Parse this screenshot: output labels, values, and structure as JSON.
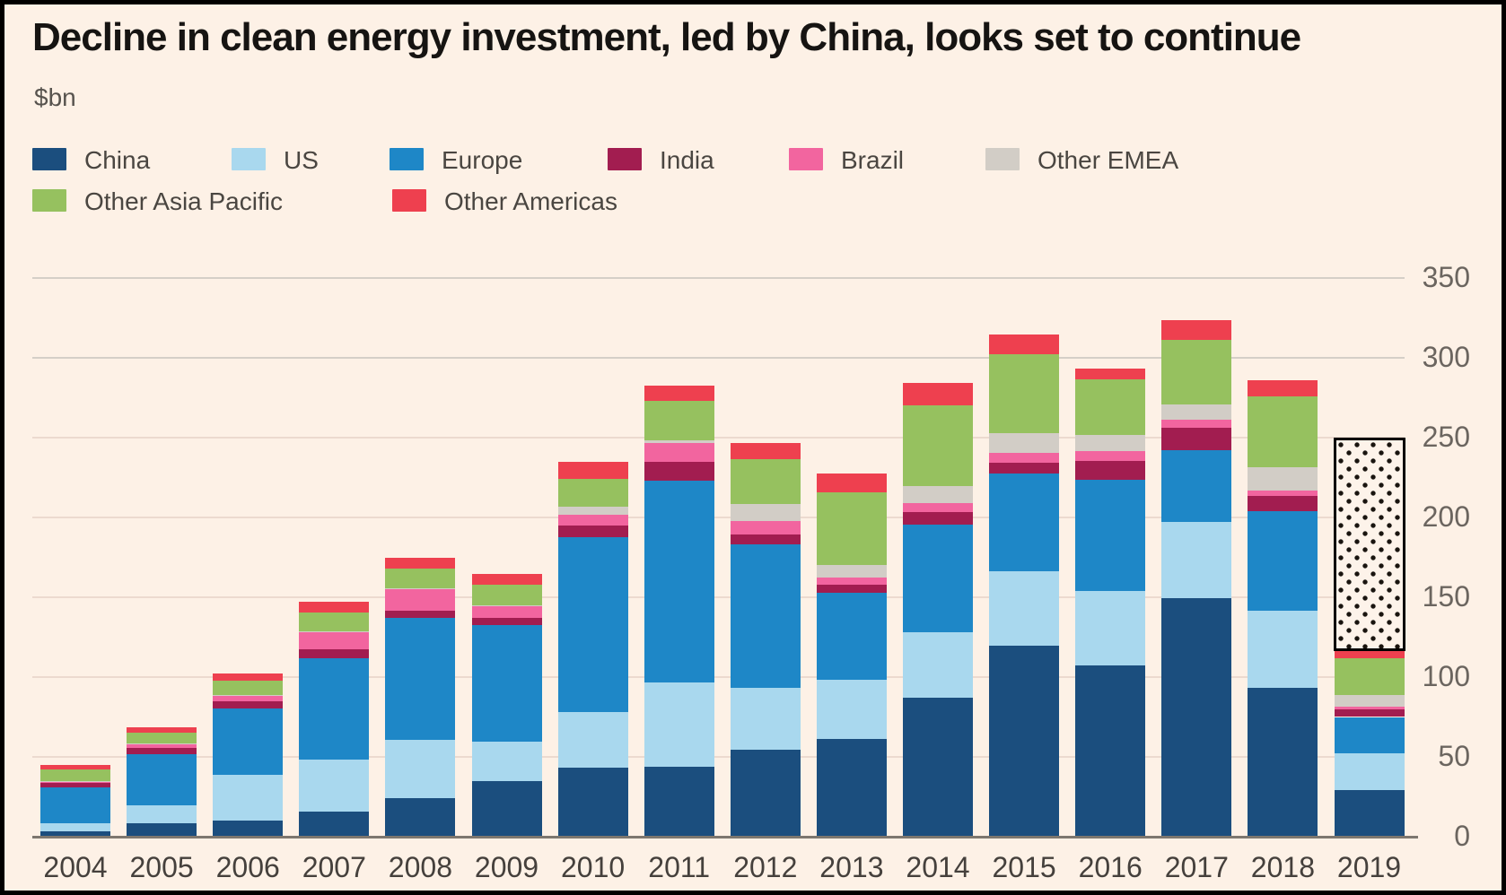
{
  "header": {
    "title": "Decline in clean energy investment, led by China, looks set to continue",
    "subtitle": "$bn"
  },
  "chart_data": {
    "type": "bar",
    "stacked": true,
    "title": "Decline in clean energy investment, led by China, looks set to continue",
    "unit_label": "$bn",
    "categories": [
      "2004",
      "2005",
      "2006",
      "2007",
      "2008",
      "2009",
      "2010",
      "2011",
      "2012",
      "2013",
      "2014",
      "2015",
      "2016",
      "2017",
      "2018",
      "2019"
    ],
    "series": [
      {
        "name": "China",
        "color": "#1b4e7e",
        "values": [
          3.5,
          8.5,
          10,
          15.5,
          24,
          35,
          43,
          44,
          54.5,
          61,
          87,
          119.5,
          107.5,
          149.5,
          93.5,
          29
        ]
      },
      {
        "name": "US",
        "color": "#a9d8ee",
        "values": [
          5,
          11,
          28.5,
          33,
          36.5,
          24.5,
          35,
          52.5,
          38.5,
          37.5,
          41,
          47,
          46.5,
          47.5,
          48,
          23.5
        ]
      },
      {
        "name": "Europe",
        "color": "#1e87c7",
        "values": [
          22.5,
          32,
          42,
          63.5,
          76.5,
          73,
          109.5,
          126.5,
          90,
          54.5,
          67.5,
          61,
          69.5,
          45,
          62.5,
          22.5
        ]
      },
      {
        "name": "India",
        "color": "#a21d50",
        "values": [
          2.5,
          4,
          4.5,
          5.5,
          4.5,
          4.5,
          7.5,
          12,
          6.5,
          5,
          8,
          7,
          12,
          14,
          9.5,
          4.5
        ]
      },
      {
        "name": "Brazil",
        "color": "#f2659f",
        "values": [
          1,
          2.5,
          3.5,
          10.5,
          13.5,
          7.5,
          6.5,
          11.5,
          8.5,
          4.5,
          5.5,
          6,
          6,
          5,
          3.5,
          2
        ]
      },
      {
        "name": "Other EMEA",
        "color": "#d2cdc6",
        "values": [
          0.5,
          0.5,
          0.5,
          0.5,
          0.5,
          0.5,
          5.5,
          2,
          10.5,
          8,
          10.5,
          12.5,
          10,
          10,
          14.5,
          7
        ]
      },
      {
        "name": "Other Asia Pacific",
        "color": "#96c15f",
        "values": [
          7,
          6.5,
          9,
          12,
          12.5,
          13,
          17,
          24.5,
          28,
          45,
          50.5,
          49.5,
          35,
          40,
          44.5,
          23.5
        ]
      },
      {
        "name": "Other Americas",
        "color": "#ee404f",
        "values": [
          3,
          3.5,
          4.5,
          6.5,
          7,
          6.5,
          11,
          9.5,
          10,
          12,
          14.5,
          12,
          7,
          12.5,
          10,
          4.5
        ]
      }
    ],
    "totals": [
      45,
      68.5,
      102.5,
      147,
      175,
      164.5,
      235,
      282.5,
      246.5,
      227.5,
      284.5,
      314.5,
      293.5,
      323.5,
      286,
      116.5
    ],
    "y_axis": {
      "ticks": [
        0,
        50,
        100,
        150,
        200,
        250,
        300,
        350
      ],
      "range": [
        0,
        367
      ],
      "gridline_color_upper": "#d5cfc7",
      "gridline_color_lower": "#ecdacf",
      "label_side": "right"
    },
    "annotation": {
      "type": "hatched_projection_range",
      "category": "2019",
      "from": 116.5,
      "to": 250
    },
    "legend_position": "top",
    "background_color": "#fdf1e6"
  },
  "legend": {
    "rows": [
      [
        "China",
        "US",
        "Europe",
        "India",
        "Brazil",
        "Other EMEA"
      ],
      [
        "Other Asia Pacific",
        "Other Americas"
      ]
    ]
  }
}
